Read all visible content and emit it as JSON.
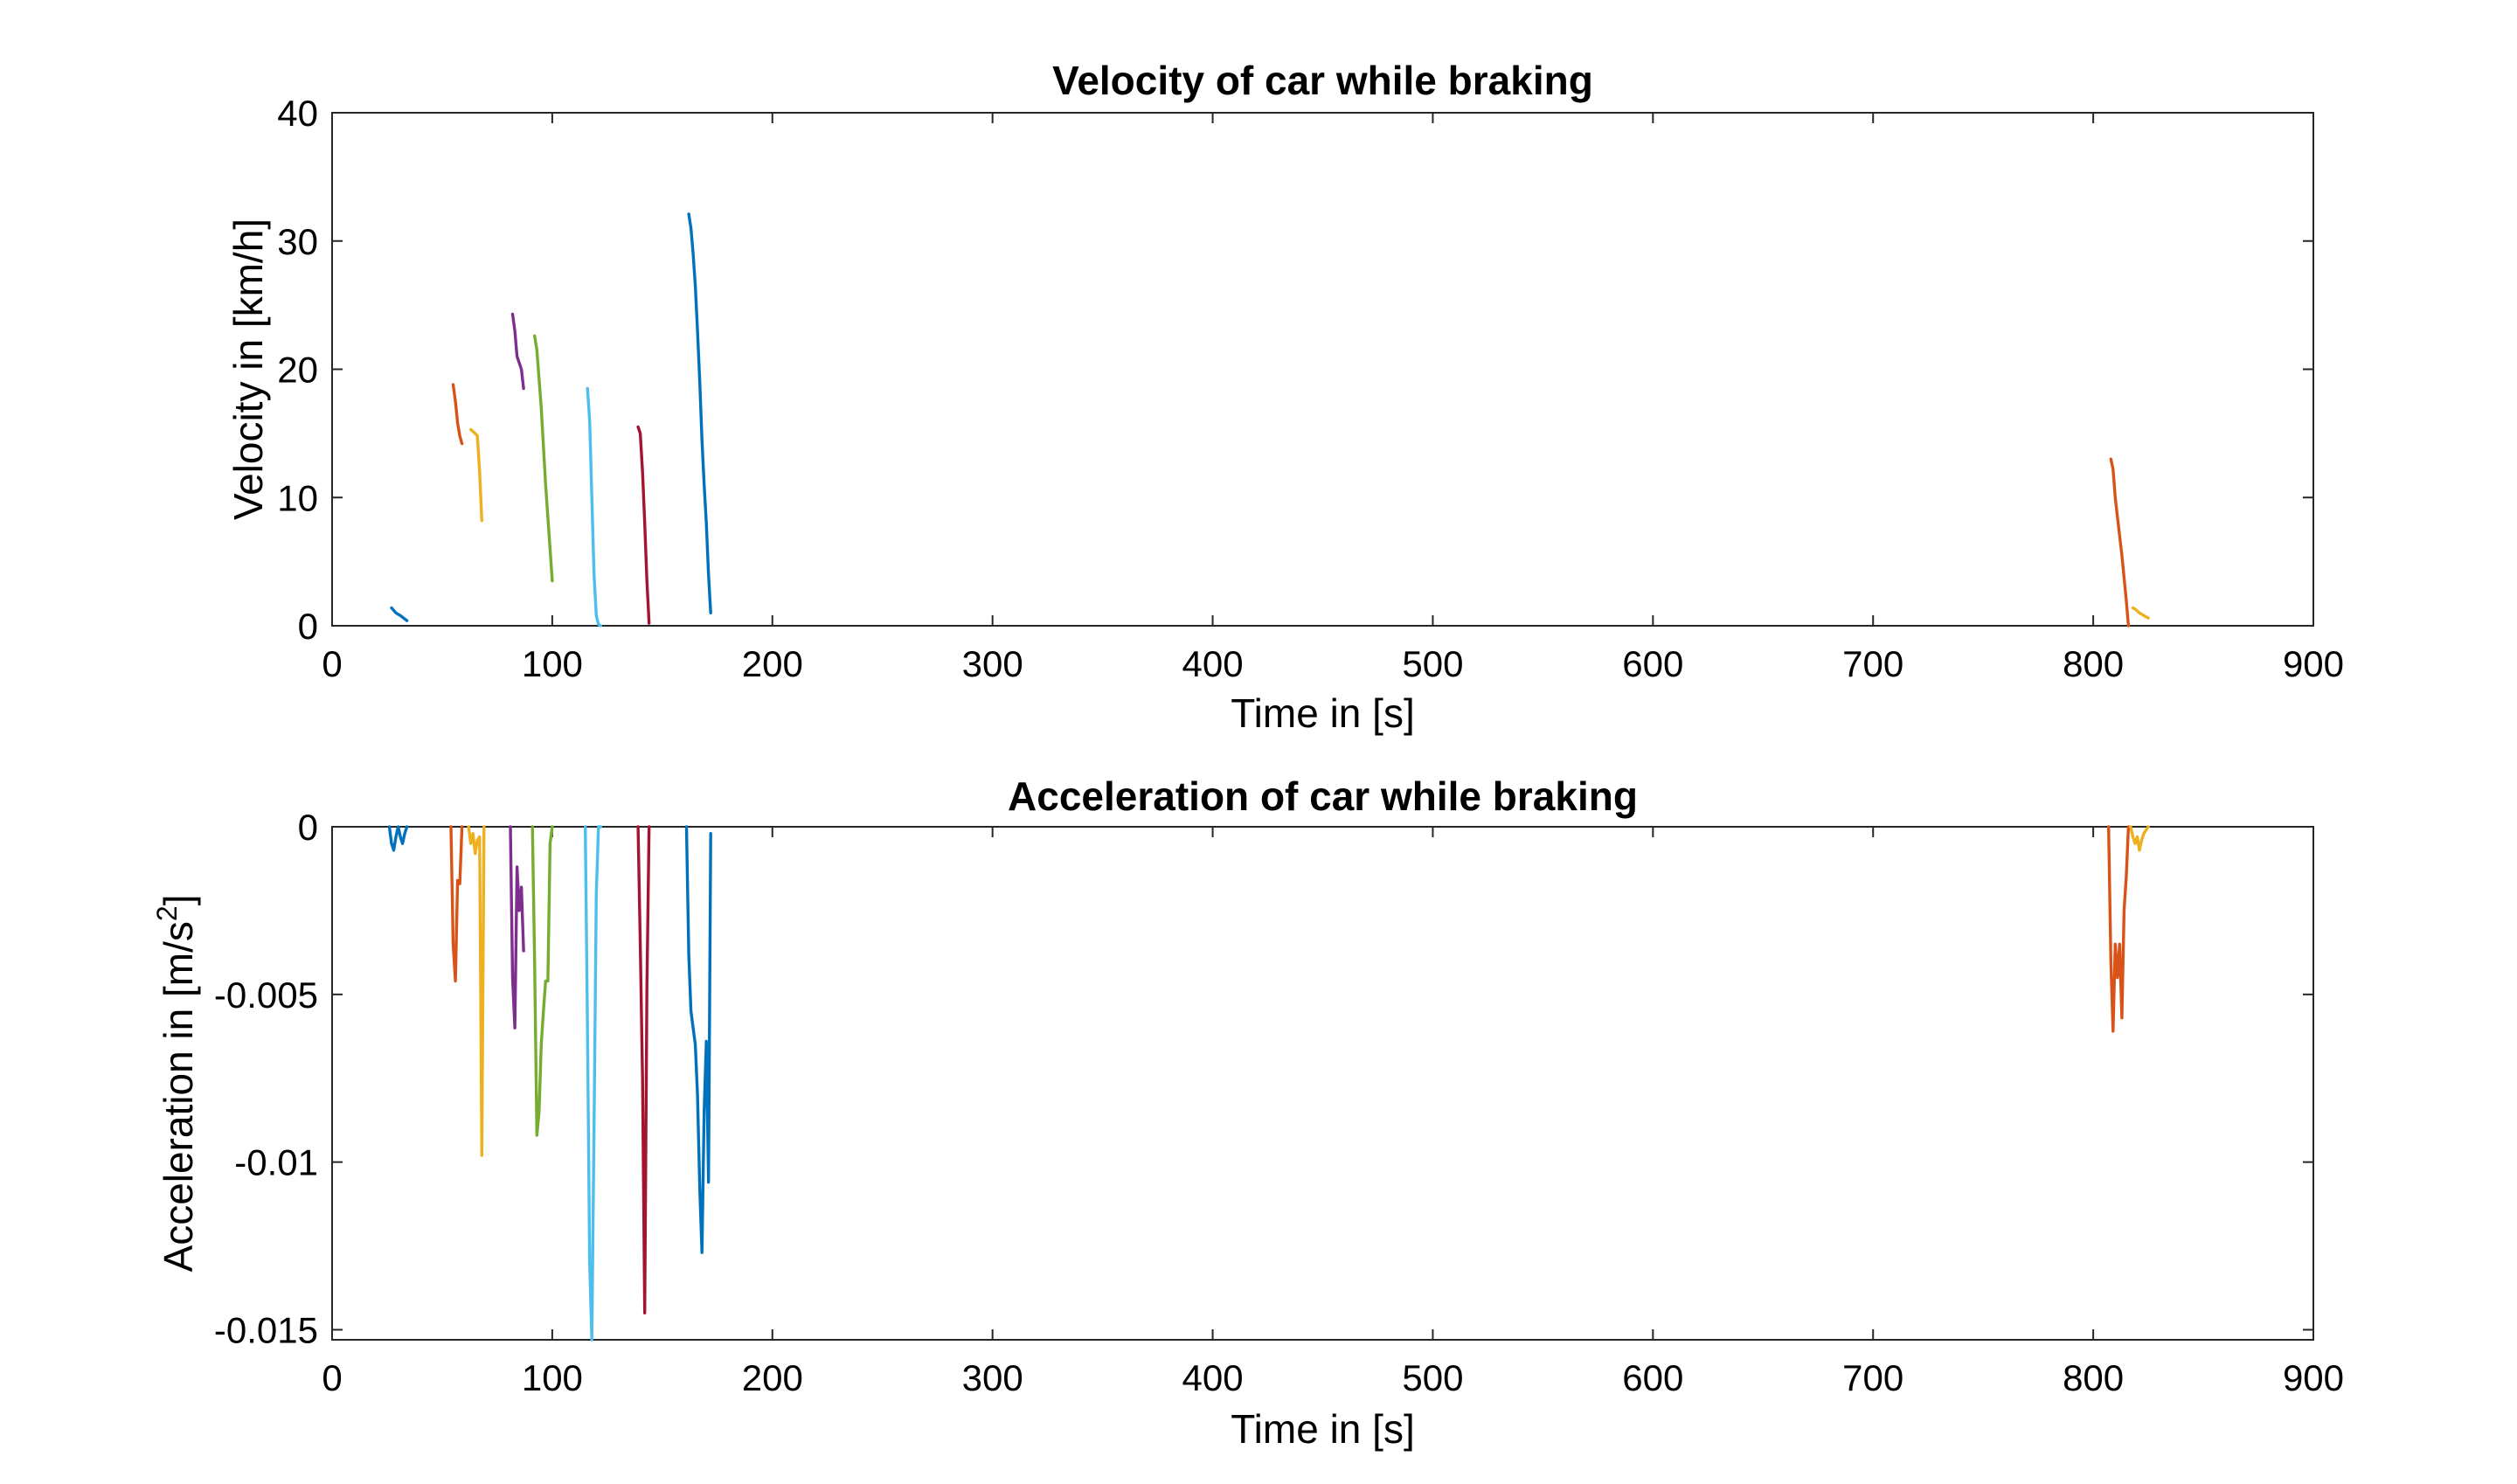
{
  "chart_data": [
    {
      "type": "line",
      "title": "Velocity of car while braking",
      "xlabel": "Time in [s]",
      "ylabel": "Velocity in [km/h]",
      "xlim": [
        0,
        900
      ],
      "ylim": [
        0,
        40
      ],
      "xticks": [
        0,
        100,
        200,
        300,
        400,
        500,
        600,
        700,
        800,
        900
      ],
      "yticks": [
        0,
        10,
        20,
        30,
        40
      ],
      "xtick_labels": [
        "0",
        "100",
        "200",
        "300",
        "400",
        "500",
        "600",
        "700",
        "800",
        "900"
      ],
      "ytick_labels": [
        "0",
        "10",
        "20",
        "30",
        "40"
      ],
      "grid": false,
      "series": [
        {
          "color": "#0072BD",
          "x": [
            27,
            29,
            31,
            34
          ],
          "y": [
            1.4,
            1.0,
            0.8,
            0.4
          ]
        },
        {
          "color": "#D95319",
          "x": [
            55,
            56,
            57,
            58,
            59
          ],
          "y": [
            18.8,
            17.5,
            15.8,
            14.8,
            14.2
          ]
        },
        {
          "color": "#EDB120",
          "x": [
            63,
            65,
            66,
            67,
            68
          ],
          "y": [
            15.3,
            15.0,
            14.8,
            12.0,
            8.2
          ]
        },
        {
          "color": "#7E2F8E",
          "x": [
            82,
            83,
            84,
            86,
            87
          ],
          "y": [
            24.3,
            23.0,
            21.0,
            20.0,
            18.5
          ]
        },
        {
          "color": "#77AC30",
          "x": [
            92,
            93,
            95,
            97,
            99,
            100
          ],
          "y": [
            22.6,
            21.5,
            17.0,
            11.0,
            6.0,
            3.5
          ]
        },
        {
          "color": "#4DBEEE",
          "x": [
            116,
            117,
            118,
            119,
            120,
            121,
            122
          ],
          "y": [
            18.5,
            16.0,
            10.0,
            4.0,
            0.8,
            0.1,
            0.0
          ]
        },
        {
          "color": "#A2142F",
          "x": [
            139,
            140,
            141,
            142,
            143,
            144
          ],
          "y": [
            15.5,
            15.0,
            12.0,
            8.0,
            3.5,
            0.2
          ]
        },
        {
          "color": "#0072BD",
          "x": [
            162,
            163,
            164,
            165,
            166,
            167,
            168,
            169,
            170,
            171,
            172
          ],
          "y": [
            32.1,
            31.0,
            29.0,
            26.5,
            23.0,
            19.0,
            14.5,
            11.0,
            8.0,
            4.0,
            1.0
          ]
        },
        {
          "color": "#D95319",
          "x": [
            808,
            809,
            810,
            811,
            813,
            815,
            816
          ],
          "y": [
            13.0,
            12.2,
            10.0,
            8.5,
            5.5,
            2.0,
            0.0
          ]
        },
        {
          "color": "#EDB120",
          "x": [
            818,
            819,
            821,
            823,
            825
          ],
          "y": [
            1.4,
            1.3,
            1.0,
            0.8,
            0.6
          ]
        }
      ]
    },
    {
      "type": "line",
      "title": "Acceleration of car while braking",
      "xlabel": "Time in [s]",
      "ylabel": "Acceleration in [m/s",
      "ylabel_superscript": "2",
      "ylabel_suffix": "]",
      "xlim": [
        0,
        900
      ],
      "ylim": [
        -0.0153,
        0
      ],
      "xticks": [
        0,
        100,
        200,
        300,
        400,
        500,
        600,
        700,
        800,
        900
      ],
      "yticks": [
        0,
        -0.005,
        -0.01,
        -0.015
      ],
      "xtick_labels": [
        "0",
        "100",
        "200",
        "300",
        "400",
        "500",
        "600",
        "700",
        "800",
        "900"
      ],
      "ytick_labels": [
        "0",
        "-0.005",
        "-0.01",
        "-0.015"
      ],
      "grid": false,
      "series": [
        {
          "color": "#0072BD",
          "x": [
            26,
            27,
            28,
            29,
            30,
            31,
            32,
            33,
            34
          ],
          "y": [
            0.0,
            -0.0005,
            -0.0007,
            -0.0003,
            0.0,
            -0.0003,
            -0.0005,
            -0.0002,
            0.0
          ]
        },
        {
          "color": "#D95319",
          "x": [
            54,
            55,
            56,
            57,
            58,
            59
          ],
          "y": [
            0.0,
            -0.0035,
            -0.0046,
            -0.0016,
            -0.0017,
            0.0
          ]
        },
        {
          "color": "#EDB120",
          "x": [
            62,
            63,
            64,
            65,
            66,
            67,
            68,
            69
          ],
          "y": [
            0.0,
            -0.0005,
            -0.0002,
            -0.0008,
            -0.0004,
            -0.0003,
            -0.0098,
            0.0
          ]
        },
        {
          "color": "#7E2F8E",
          "x": [
            81,
            82,
            83,
            84,
            85,
            86,
            87
          ],
          "y": [
            0.0,
            -0.0045,
            -0.006,
            -0.0012,
            -0.0025,
            -0.0018,
            -0.0037
          ]
        },
        {
          "color": "#77AC30",
          "x": [
            91,
            92,
            93,
            94,
            95,
            96,
            97,
            98,
            99,
            100
          ],
          "y": [
            0.0,
            -0.004,
            -0.0092,
            -0.0085,
            -0.0065,
            -0.0055,
            -0.0046,
            -0.0046,
            -0.0005,
            0.0
          ]
        },
        {
          "color": "#4DBEEE",
          "x": [
            115,
            116,
            117,
            118,
            119,
            120,
            121,
            122
          ],
          "y": [
            0.0,
            -0.006,
            -0.013,
            -0.0153,
            -0.009,
            -0.002,
            0.0,
            0.0
          ]
        },
        {
          "color": "#A2142F",
          "x": [
            139,
            140,
            141,
            142,
            143,
            144
          ],
          "y": [
            0.0,
            -0.0035,
            -0.0075,
            -0.0145,
            -0.0048,
            0.0
          ]
        },
        {
          "color": "#0072BD",
          "x": [
            161,
            162,
            163,
            164,
            165,
            166,
            167,
            168,
            169,
            170,
            171,
            172
          ],
          "y": [
            0.0,
            -0.0038,
            -0.0055,
            -0.006,
            -0.0065,
            -0.008,
            -0.0108,
            -0.0127,
            -0.0085,
            -0.0064,
            -0.0106,
            -0.0002
          ]
        },
        {
          "color": "#D95319",
          "x": [
            807,
            808,
            809,
            810,
            811,
            812,
            813,
            814,
            815,
            816
          ],
          "y": [
            0.0,
            -0.004,
            -0.0061,
            -0.0035,
            -0.0045,
            -0.0035,
            -0.0057,
            -0.0025,
            -0.0015,
            0.0
          ]
        },
        {
          "color": "#EDB120",
          "x": [
            817,
            818,
            819,
            820,
            821,
            822,
            823,
            824,
            825
          ],
          "y": [
            0.0,
            -0.0003,
            -0.0005,
            -0.0003,
            -0.0007,
            -0.0004,
            -0.0002,
            -0.0001,
            0.0
          ]
        }
      ]
    }
  ]
}
